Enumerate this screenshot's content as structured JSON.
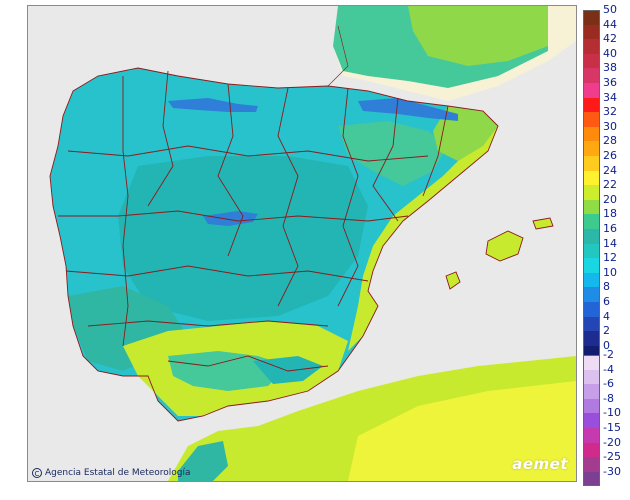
{
  "map": {
    "credit_text": "Agencia Estatal de Meteorología",
    "logo_text": "aemet",
    "colors": {
      "sea": "#e9e9e9",
      "foreign_land": "#f7f1d5",
      "border": "#8b1a1a",
      "t12": "#27c2cc",
      "t14": "#23b5b3",
      "t16": "#2fb7a4",
      "t18": "#45c89a",
      "t20": "#8fd84a",
      "t22": "#c8ea2e",
      "t24": "#eef43a",
      "t8": "#2f7fd8",
      "t4": "#2a3fb0"
    }
  },
  "legend": {
    "positive": [
      {
        "label": "50",
        "color": "#7b2f16"
      },
      {
        "label": "44",
        "color": "#9a2b20"
      },
      {
        "label": "42",
        "color": "#b42e34"
      },
      {
        "label": "40",
        "color": "#c93048"
      },
      {
        "label": "38",
        "color": "#d83666"
      },
      {
        "label": "36",
        "color": "#ef3c8c"
      },
      {
        "label": "34",
        "color": "#ff1a1a"
      },
      {
        "label": "32",
        "color": "#ff5a14"
      },
      {
        "label": "30",
        "color": "#ff8a0c"
      },
      {
        "label": "28",
        "color": "#ffa812"
      },
      {
        "label": "26",
        "color": "#ffcb1e"
      },
      {
        "label": "24",
        "color": "#fff030"
      },
      {
        "label": "22",
        "color": "#cdec2b"
      },
      {
        "label": "20",
        "color": "#8fdc45"
      },
      {
        "label": "18",
        "color": "#3dca8f"
      },
      {
        "label": "16",
        "color": "#2cb8a8"
      },
      {
        "label": "14",
        "color": "#22c8c0"
      },
      {
        "label": "12",
        "color": "#18d6e2"
      },
      {
        "label": "10",
        "color": "#14b8ec"
      },
      {
        "label": "8",
        "color": "#1f8ce6"
      },
      {
        "label": "6",
        "color": "#2364d6"
      },
      {
        "label": "4",
        "color": "#2446b4"
      },
      {
        "label": "2",
        "color": "#1e2c92"
      },
      {
        "label": "0",
        "color": "#131d70"
      }
    ],
    "negative": [
      {
        "label": "-2",
        "color": "#eedcf4"
      },
      {
        "label": "-4",
        "color": "#dcc0ee"
      },
      {
        "label": "-6",
        "color": "#c79ee8"
      },
      {
        "label": "-8",
        "color": "#b07ae0"
      },
      {
        "label": "-10",
        "color": "#9a4fdc"
      },
      {
        "label": "-15",
        "color": "#c63ab0"
      },
      {
        "label": "-20",
        "color": "#d02a8c"
      },
      {
        "label": "-25",
        "color": "#a33b8e"
      },
      {
        "label": "-30",
        "color": "#7c3f92"
      }
    ]
  }
}
